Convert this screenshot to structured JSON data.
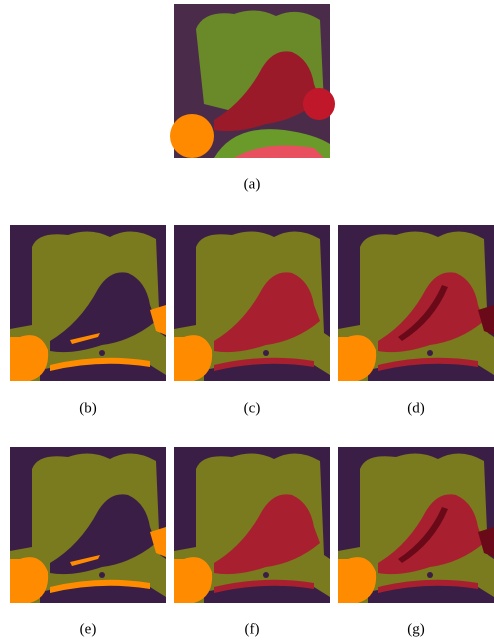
{
  "figure": {
    "captions": [
      "(a)",
      "(b)",
      "(c)",
      "(d)",
      "(e)",
      "(f)",
      "(g)"
    ]
  }
}
